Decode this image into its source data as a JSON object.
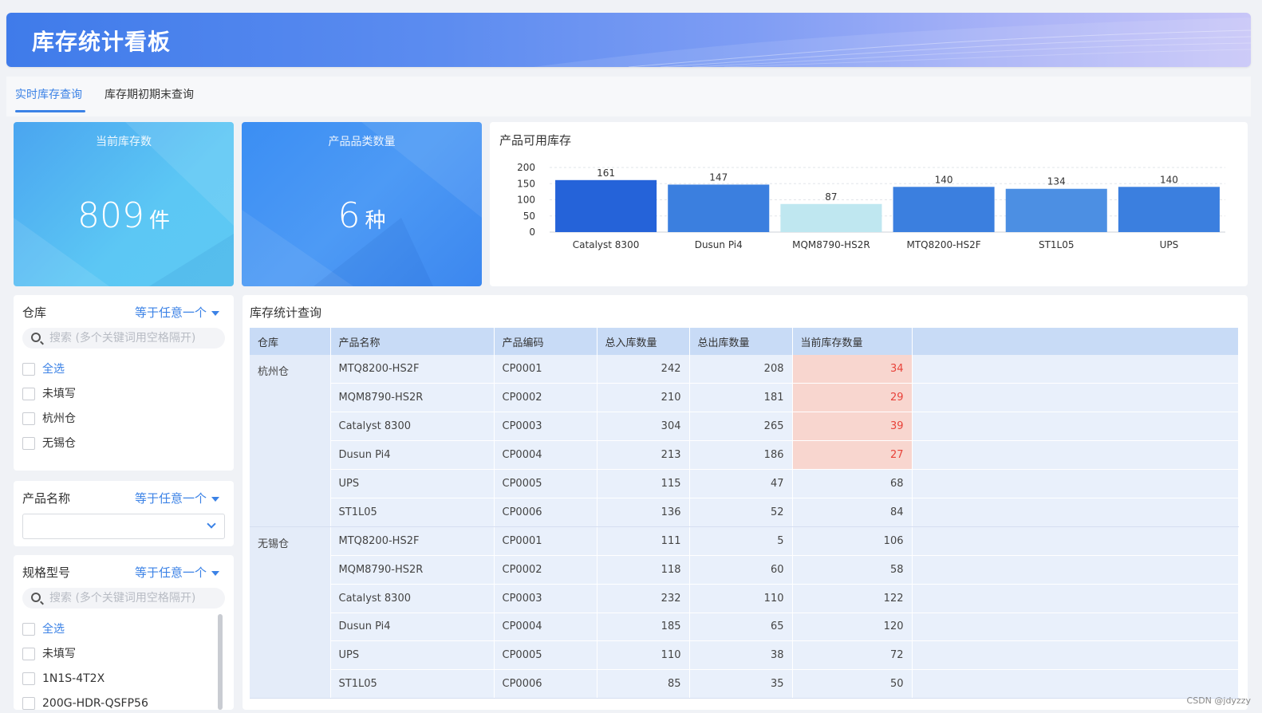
{
  "header": {
    "title": "库存统计看板"
  },
  "tabs": [
    {
      "label": "实时库存查询",
      "active": true
    },
    {
      "label": "库存期初期末查询",
      "active": false
    }
  ],
  "kpis": [
    {
      "label": "当前库存数",
      "value": "809",
      "unit": "件"
    },
    {
      "label": "产品品类数量",
      "value": "6",
      "unit": "种"
    }
  ],
  "chart_panel": {
    "title": "产品可用库存"
  },
  "chart_data": {
    "type": "bar",
    "categories": [
      "Catalyst 8300",
      "Dusun Pi4",
      "MQM8790-HS2R",
      "MTQ8200-HS2F",
      "ST1L05",
      "UPS"
    ],
    "values": [
      161,
      147,
      87,
      140,
      134,
      140
    ],
    "yticks": [
      0,
      50,
      100,
      150,
      200
    ],
    "ylim": [
      0,
      200
    ],
    "bar_colors": [
      "#2563d9",
      "#3b7fdf",
      "#bfe7f0",
      "#3b7fdf",
      "#4c8fe3",
      "#3b7fdf"
    ],
    "grid": true,
    "title": "",
    "xlabel": "",
    "ylabel": ""
  },
  "filters": {
    "warehouse": {
      "title": "仓库",
      "op": "等于任意一个",
      "placeholder": "搜索 (多个关键词用空格隔开)",
      "options": [
        "全选",
        "未填写",
        "杭州仓",
        "无锡仓"
      ]
    },
    "product": {
      "title": "产品名称",
      "op": "等于任意一个"
    },
    "model": {
      "title": "规格型号",
      "op": "等于任意一个",
      "placeholder": "搜索 (多个关键词用空格隔开)",
      "options": [
        "全选",
        "未填写",
        "1N1S-4T2X",
        "200G-HDR-QSFP56"
      ]
    }
  },
  "table": {
    "title": "库存统计查询",
    "columns": [
      "仓库",
      "产品名称",
      "产品编码",
      "总入库数量",
      "总出库数量",
      "当前库存数量"
    ],
    "groups": [
      {
        "warehouse": "杭州仓",
        "rows": [
          {
            "name": "MTQ8200-HS2F",
            "code": "CP0001",
            "in": "242",
            "out": "208",
            "stock": "34",
            "low": true
          },
          {
            "name": "MQM8790-HS2R",
            "code": "CP0002",
            "in": "210",
            "out": "181",
            "stock": "29",
            "low": true
          },
          {
            "name": "Catalyst 8300",
            "code": "CP0003",
            "in": "304",
            "out": "265",
            "stock": "39",
            "low": true
          },
          {
            "name": "Dusun Pi4",
            "code": "CP0004",
            "in": "213",
            "out": "186",
            "stock": "27",
            "low": true
          },
          {
            "name": "UPS",
            "code": "CP0005",
            "in": "115",
            "out": "47",
            "stock": "68",
            "low": false
          },
          {
            "name": "ST1L05",
            "code": "CP0006",
            "in": "136",
            "out": "52",
            "stock": "84",
            "low": false
          }
        ]
      },
      {
        "warehouse": "无锡仓",
        "rows": [
          {
            "name": "MTQ8200-HS2F",
            "code": "CP0001",
            "in": "111",
            "out": "5",
            "stock": "106",
            "low": false
          },
          {
            "name": "MQM8790-HS2R",
            "code": "CP0002",
            "in": "118",
            "out": "60",
            "stock": "58",
            "low": false
          },
          {
            "name": "Catalyst 8300",
            "code": "CP0003",
            "in": "232",
            "out": "110",
            "stock": "122",
            "low": false
          },
          {
            "name": "Dusun Pi4",
            "code": "CP0004",
            "in": "185",
            "out": "65",
            "stock": "120",
            "low": false
          },
          {
            "name": "UPS",
            "code": "CP0005",
            "in": "110",
            "out": "38",
            "stock": "72",
            "low": false
          },
          {
            "name": "ST1L05",
            "code": "CP0006",
            "in": "85",
            "out": "35",
            "stock": "50",
            "low": false
          }
        ]
      }
    ]
  },
  "watermark": "CSDN @jdyzzy"
}
